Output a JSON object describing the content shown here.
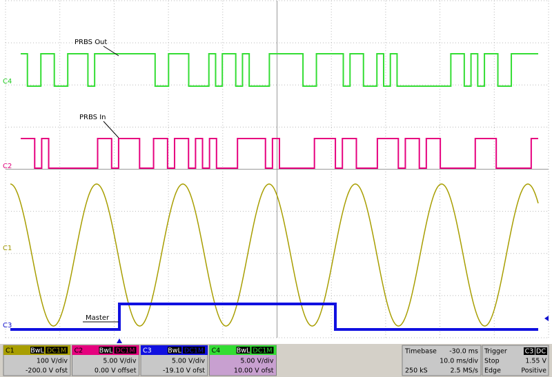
{
  "screen": {
    "trace_labels": {
      "c4": "C4",
      "c2": "C2",
      "c1": "C1",
      "c3": "C3"
    },
    "annotations": {
      "prbs_out": "PRBS Out",
      "prbs_in": "PRBS In",
      "master": "Master"
    }
  },
  "channels": [
    {
      "name": "C1",
      "bw": "BwL",
      "coupling": "DC1M",
      "scale": "100 V/div",
      "offset": "-200.0 V ofst"
    },
    {
      "name": "C2",
      "bw": "BwL",
      "coupling": "DC1M",
      "scale": "5.00 V/div",
      "offset": "0.00 V offset"
    },
    {
      "name": "C3",
      "bw": "BwL",
      "coupling": "DC1M",
      "scale": "5.00 V/div",
      "offset": "-19.10 V ofst"
    },
    {
      "name": "C4",
      "bw": "BwL",
      "coupling": "DC1M",
      "scale": "5.00 V/div",
      "offset": "10.00 V ofst"
    }
  ],
  "timebase": {
    "label": "Timebase",
    "delay": "-30.0 ms",
    "scale": "10.0 ms/div",
    "samples": "250 kS",
    "rate": "2.5 MS/s"
  },
  "trigger": {
    "label": "Trigger",
    "source": "C3",
    "coupling": "DC",
    "mode": "Stop",
    "level": "1.55 V",
    "type": "Edge",
    "slope": "Positive"
  }
}
